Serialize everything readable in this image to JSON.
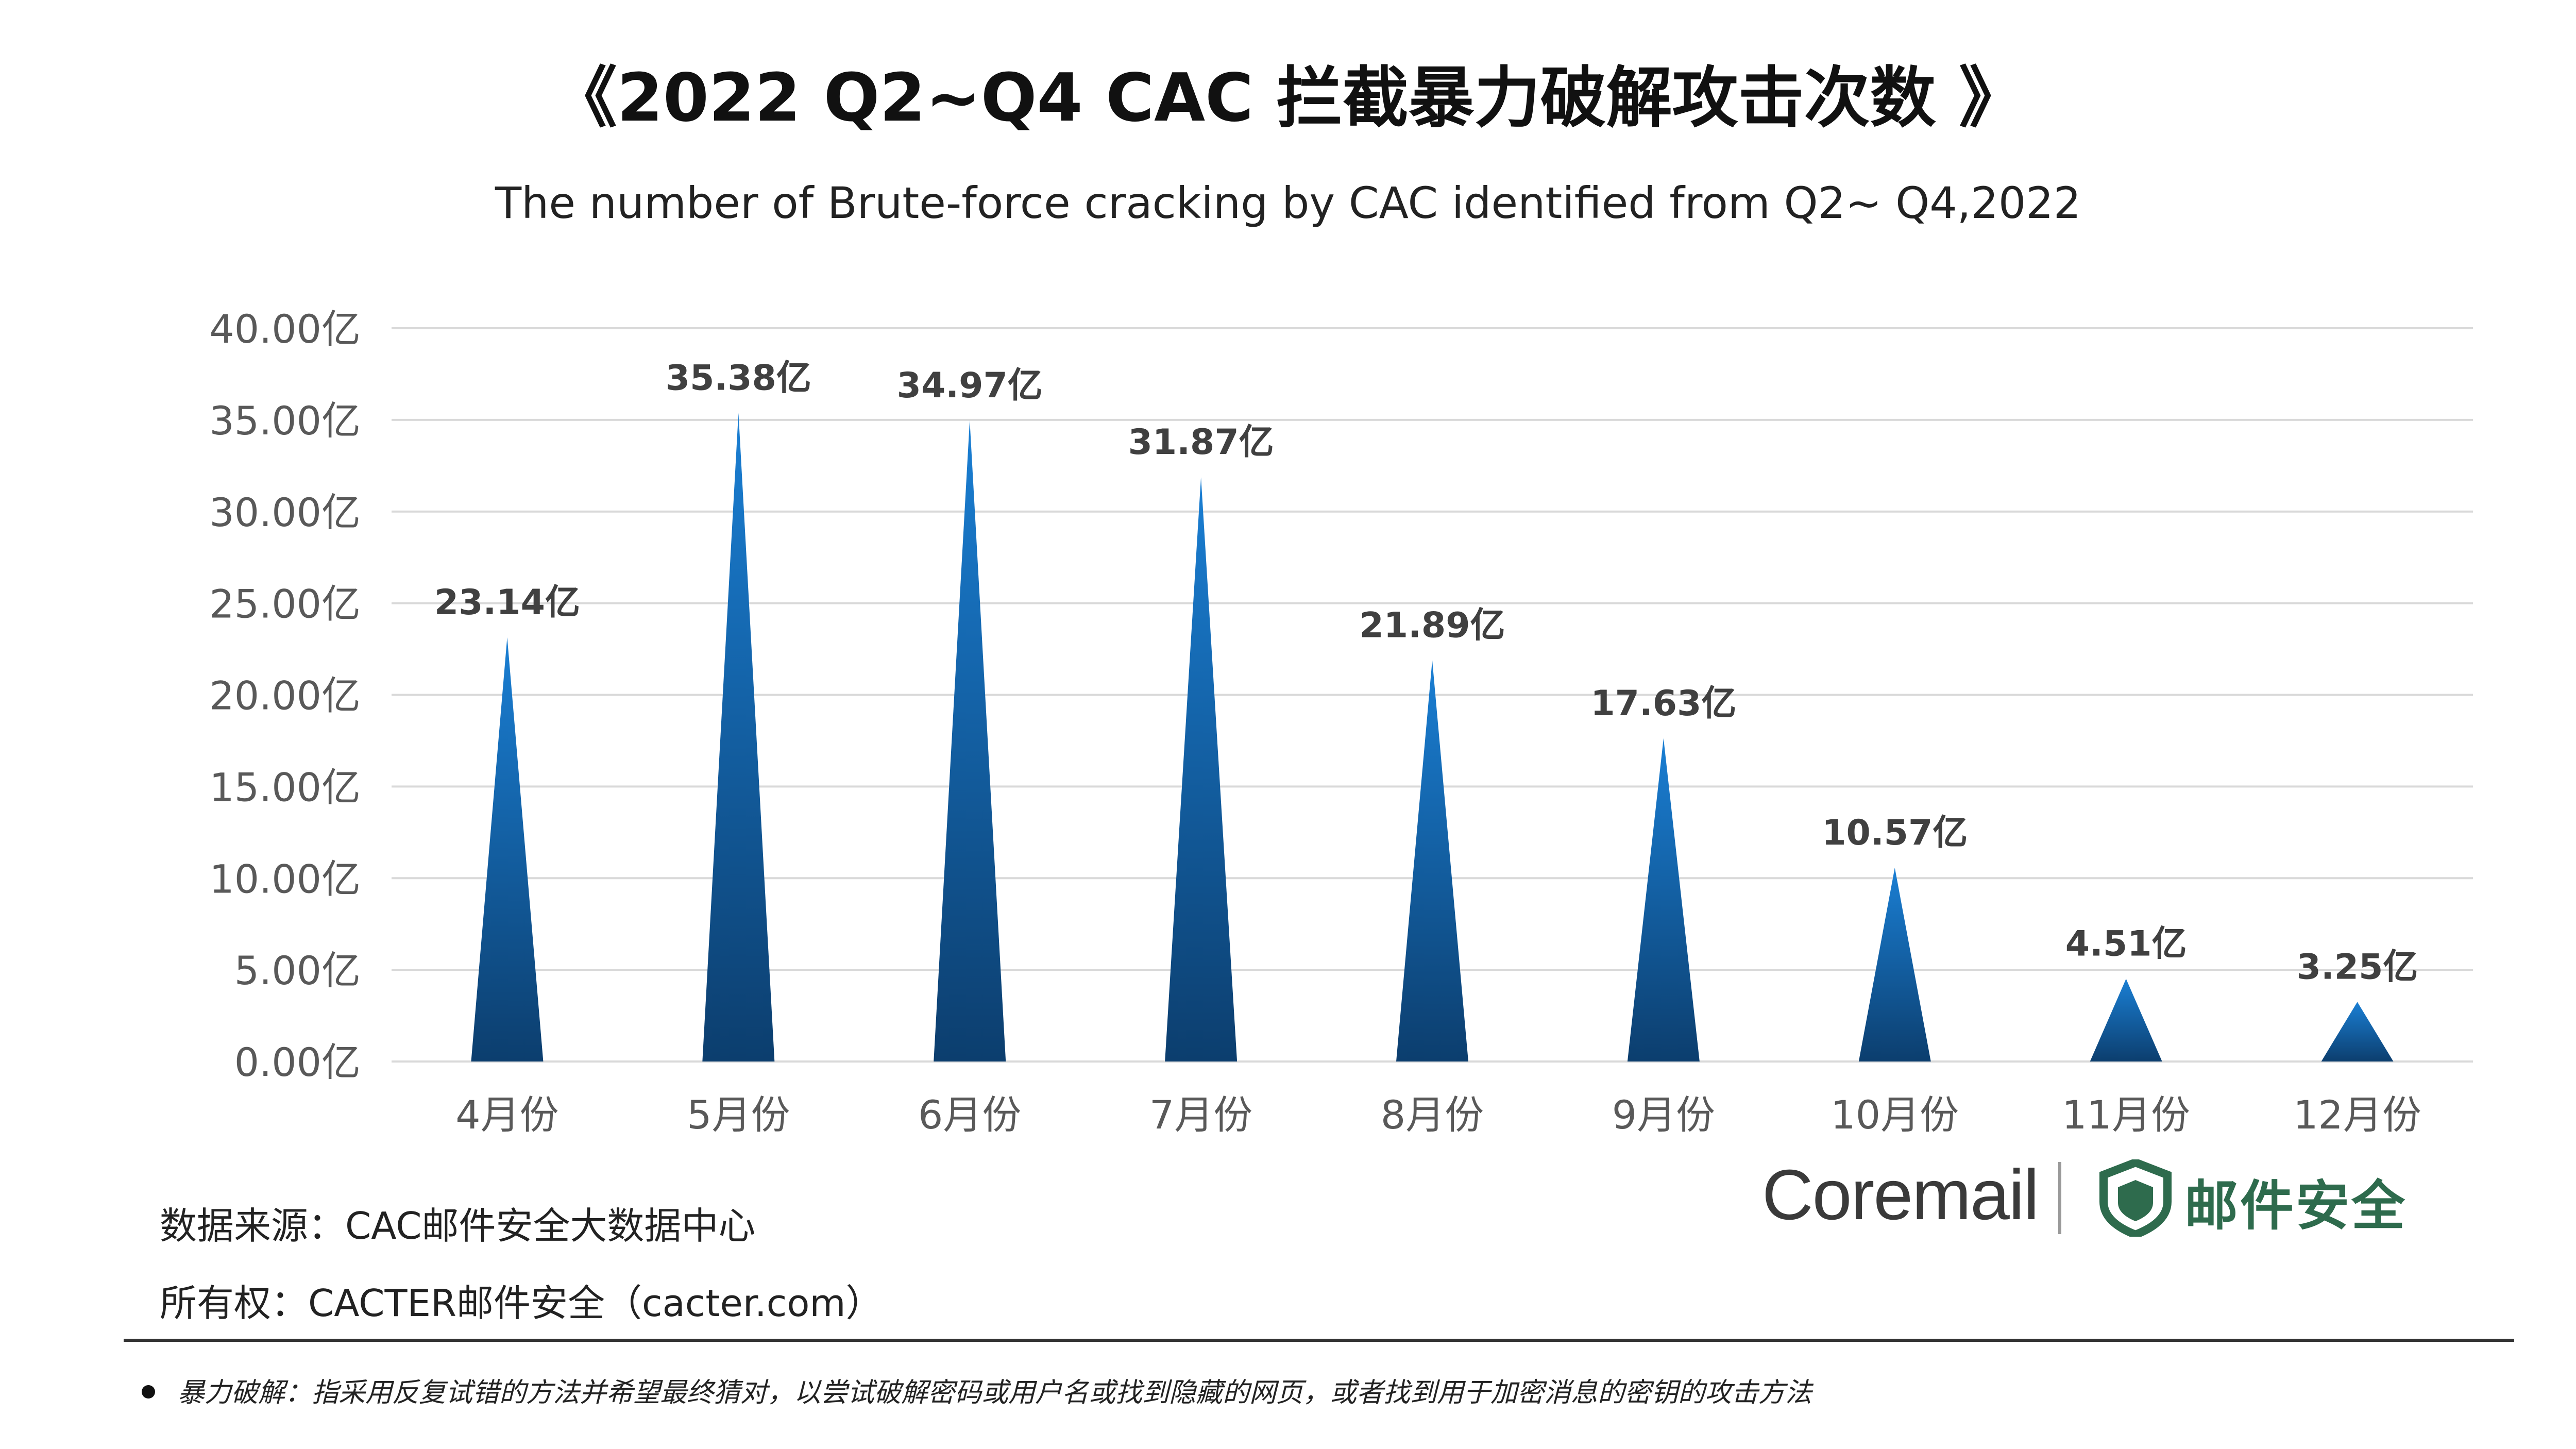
{
  "title": "《2022 Q2~Q4 CAC 拦截暴力破解攻击次数 》",
  "subtitle": "The number of Brute-force cracking by CAC identified from Q2~ Q4,2022",
  "chart_data": {
    "type": "bar",
    "title": "《2022 Q2~Q4 CAC 拦截暴力破解攻击次数 》",
    "subtitle": "The number of Brute-force cracking by CAC identified from Q2~ Q4,2022",
    "categories": [
      "4月份",
      "5月份",
      "6月份",
      "7月份",
      "8月份",
      "9月份",
      "10月份",
      "11月份",
      "12月份"
    ],
    "values": [
      23.14,
      35.38,
      34.97,
      31.87,
      21.89,
      17.63,
      10.57,
      4.51,
      3.25
    ],
    "data_labels": [
      "23.14亿",
      "35.38亿",
      "34.97亿",
      "31.87亿",
      "21.89亿",
      "17.63亿",
      "10.57亿",
      "4.51亿",
      "3.25亿"
    ],
    "ylim": [
      0,
      40
    ],
    "yticks": [
      0,
      5,
      10,
      15,
      20,
      25,
      30,
      35,
      40
    ],
    "ytick_labels": [
      "0.00亿",
      "5.00亿",
      "10.00亿",
      "15.00亿",
      "20.00亿",
      "25.00亿",
      "30.00亿",
      "35.00亿",
      "40.00亿"
    ],
    "xlabel": "",
    "ylabel": "",
    "grid": true,
    "bar_shape": "triangle",
    "colors": {
      "bar_top": "#1a7fd4",
      "bar_bottom": "#0c3e6e",
      "grid": "#d9d9d9",
      "tick_text": "#595959",
      "label_text": "#404040"
    }
  },
  "footer": {
    "source": "数据来源：CAC邮件安全大数据中心",
    "copyright": "所有权：CACTER邮件安全（cacter.com）",
    "note": "暴力破解：指采用反复试错的方法并希望最终猜对，以尝试破解密码或用户名或找到隐藏的网页，或者找到用于加密消息的密钥的攻击方法"
  },
  "logos": {
    "coremail": "Coremail",
    "cacter": "邮件安全",
    "cacter_color": "#2e6b4d"
  }
}
